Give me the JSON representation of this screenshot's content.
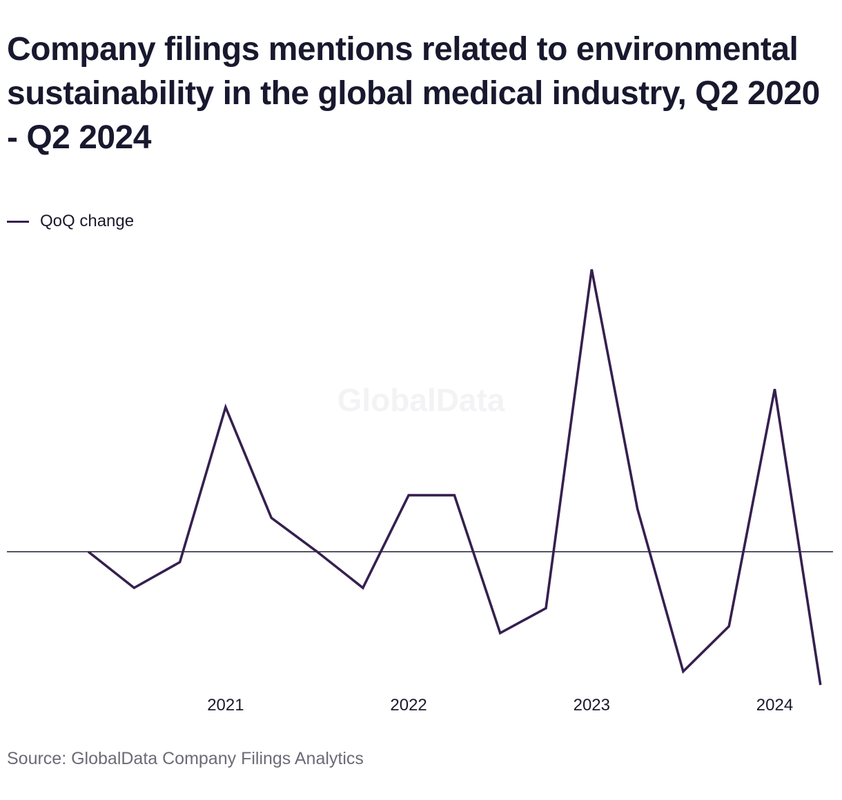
{
  "title": "Company filings mentions related to environmental sustainability in the global medical industry, Q2 2020 - Q2 2024",
  "legend": {
    "label": "QoQ change"
  },
  "source": "Source: GlobalData Company Filings Analytics",
  "watermark": "GlobalData",
  "colors": {
    "series": "#35204f",
    "zero_line": "#1a1a2e",
    "text": "#18182e",
    "source": "#6b6b76"
  },
  "chart_data": {
    "type": "line",
    "title": "Company filings mentions related to environmental sustainability in the global medical industry, Q2 2020 - Q2 2024",
    "x": [
      "Q2 2020",
      "Q3 2020",
      "Q4 2020",
      "Q1 2021",
      "Q2 2021",
      "Q3 2021",
      "Q4 2021",
      "Q1 2022",
      "Q2 2022",
      "Q3 2022",
      "Q4 2022",
      "Q1 2023",
      "Q2 2023",
      "Q3 2023",
      "Q4 2023",
      "Q1 2024",
      "Q2 2024"
    ],
    "x_tick_labels": [
      "2021",
      "2022",
      "2023",
      "2024"
    ],
    "x_tick_positions": [
      "Q1 2021",
      "Q1 2022",
      "Q1 2023",
      "Q1 2024"
    ],
    "y_axis_visible": false,
    "zero_line": true,
    "ylim": [
      -30,
      65
    ],
    "grid": false,
    "legend_position": "top-left",
    "series": [
      {
        "name": "QoQ change",
        "values": [
          0,
          -8,
          -2.3,
          32,
          7.5,
          0,
          -8,
          12.5,
          12.5,
          -18,
          -12.5,
          62.5,
          9.5,
          -26.5,
          -16.5,
          36,
          -29.5
        ]
      }
    ]
  }
}
